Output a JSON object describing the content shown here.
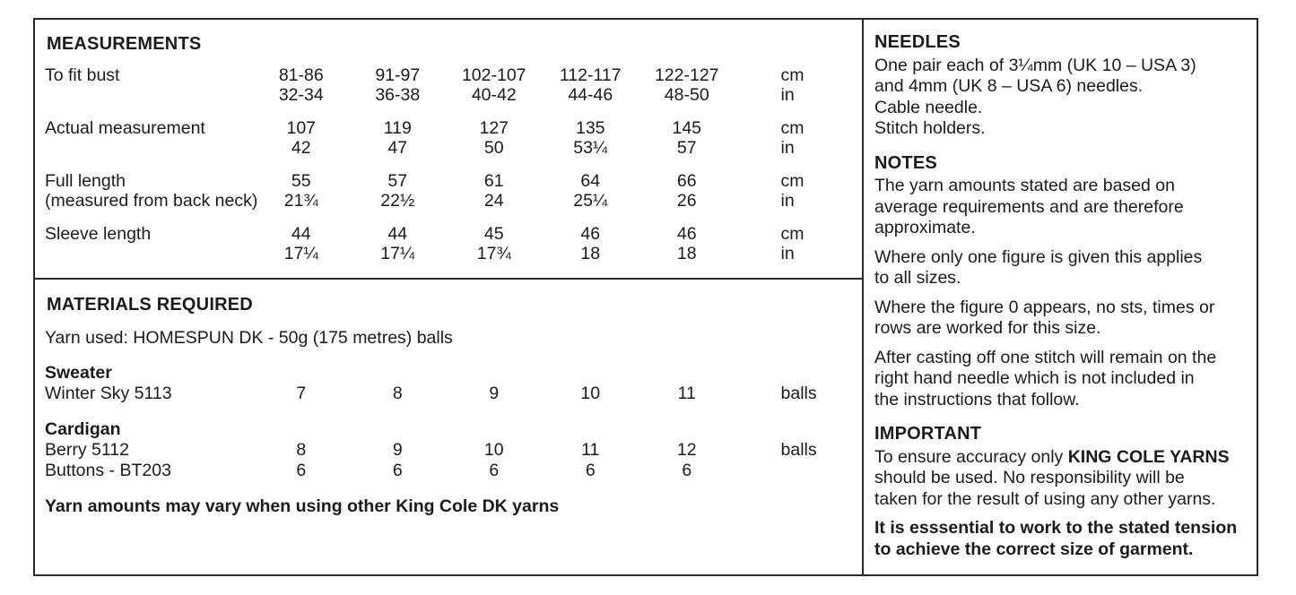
{
  "measurements": {
    "heading": "MEASUREMENTS",
    "unit_cm": "cm",
    "unit_in": "in",
    "rows": [
      {
        "label1": "To fit bust",
        "label2": "",
        "cm": [
          "81-86",
          "91-97",
          "102-107",
          "112-117",
          "122-127"
        ],
        "in": [
          "32-34",
          "36-38",
          "40-42",
          "44-46",
          "48-50"
        ]
      },
      {
        "label1": "Actual measurement",
        "label2": "",
        "cm": [
          "107",
          "119",
          "127",
          "135",
          "145"
        ],
        "in": [
          "42",
          "47",
          "50",
          "53¼",
          "57"
        ]
      },
      {
        "label1": "Full length",
        "label2": "(measured from back neck)",
        "cm": [
          "55",
          "57",
          "61",
          "64",
          "66"
        ],
        "in": [
          "21¾",
          "22½",
          "24",
          "25¼",
          "26"
        ]
      },
      {
        "label1": "Sleeve length",
        "label2": "",
        "cm": [
          "44",
          "44",
          "45",
          "46",
          "46"
        ],
        "in": [
          "17¼",
          "17¼",
          "17¾",
          "18",
          "18"
        ]
      }
    ]
  },
  "materials": {
    "heading": "MATERIALS REQUIRED",
    "yarn_used": "Yarn used: HOMESPUN DK - 50g (175 metres) balls",
    "sweater": {
      "name": "Sweater",
      "yarn": "Winter Sky 5113",
      "values": [
        "7",
        "8",
        "9",
        "10",
        "11"
      ],
      "unit": "balls"
    },
    "cardigan": {
      "name": "Cardigan",
      "yarn": "Berry 5112",
      "values": [
        "8",
        "9",
        "10",
        "11",
        "12"
      ],
      "unit": "balls",
      "buttons_label": "Buttons - BT203",
      "buttons_values": [
        "6",
        "6",
        "6",
        "6",
        "6"
      ]
    },
    "note": "Yarn amounts may vary when using other King Cole DK yarns"
  },
  "needles": {
    "heading": "NEEDLES",
    "line1": "One pair each of 3¼mm (UK 10 – USA 3)",
    "line2": "and 4mm (UK 8 – USA 6) needles.",
    "line3": "Cable needle.",
    "line4": "Stitch holders."
  },
  "notes": {
    "heading": "NOTES",
    "p1": [
      "The yarn amounts stated are based on",
      "average requirements and are therefore",
      "approximate."
    ],
    "p2": [
      "Where only one figure is given this applies",
      "to all sizes."
    ],
    "p3": [
      "Where the figure 0 appears, no sts, times or",
      "rows are worked for this size."
    ],
    "p4": [
      "After casting off one stitch will remain on the",
      "right hand needle which is not included in",
      "the instructions that follow."
    ]
  },
  "important": {
    "heading": "IMPORTANT",
    "p1_line1_normal": "To ensure accuracy only ",
    "p1_line1_bold": "KING COLE YARNS",
    "p1_line2": "should be used. No responsibility will be",
    "p1_line3": "taken for the result of using any other yarns.",
    "p2_line1": "It is esssential to work to the stated tension",
    "p2_line2": "to achieve the correct size of garment."
  }
}
